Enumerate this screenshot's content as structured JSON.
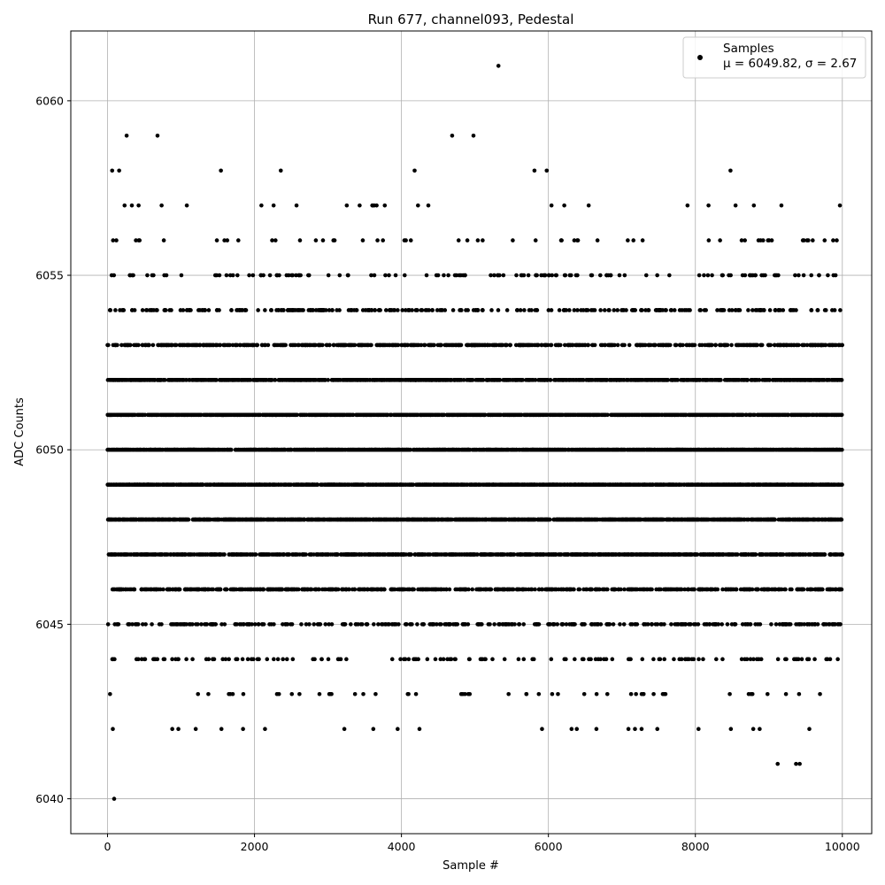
{
  "chart_data": {
    "type": "scatter",
    "title": "Run 677, channel093, Pedestal",
    "xlabel": "Sample #",
    "ylabel": "ADC Counts",
    "xlim": [
      -500,
      10400
    ],
    "ylim": [
      6039,
      6062
    ],
    "xticks": [
      0,
      2000,
      4000,
      6000,
      8000,
      10000
    ],
    "yticks": [
      6040,
      6045,
      6050,
      6055,
      6060
    ],
    "grid": true,
    "legend_position": "top-right",
    "marker_color": "#000000",
    "series": [
      {
        "name": "Samples",
        "stats_label": "μ = 6049.82, σ = 2.67",
        "n_samples": 10000,
        "mean": 6049.82,
        "std": 2.67,
        "approx_count_by_level": {
          "6040": 1,
          "6041": 3,
          "6042": 20,
          "6043": 40,
          "6044": 120,
          "6045": 330,
          "6046": 680,
          "6047": 1050,
          "6048": 1360,
          "6049": 1500,
          "6050": 1480,
          "6051": 1300,
          "6052": 1000,
          "6053": 600,
          "6054": 280,
          "6055": 130,
          "6056": 60,
          "6057": 25,
          "6058": 13,
          "6059": 4,
          "6061": 1
        },
        "outliers": [
          {
            "x": 90,
            "y": 6040
          },
          {
            "x": 5320,
            "y": 6061
          },
          {
            "x": 260,
            "y": 6059
          },
          {
            "x": 680,
            "y": 6059
          },
          {
            "x": 4690,
            "y": 6059
          },
          {
            "x": 4980,
            "y": 6059
          },
          {
            "x": 9120,
            "y": 6041
          },
          {
            "x": 9370,
            "y": 6041
          },
          {
            "x": 9420,
            "y": 6041
          }
        ]
      }
    ]
  }
}
